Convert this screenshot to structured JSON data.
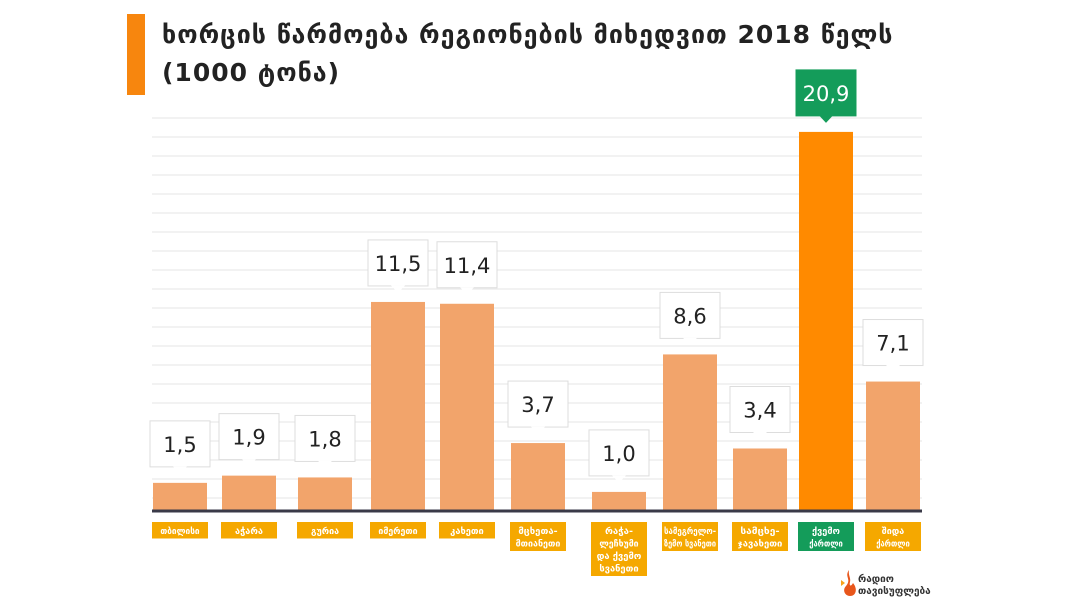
{
  "title": {
    "line1": "ხორცის წარმოება რეგიონების მიხედვით 2018 წელს",
    "line2": "(1000 ტონა)"
  },
  "colors": {
    "accent": "#F7860E",
    "bar": "#F2A46B",
    "highlight_bar": "#FF8A00",
    "highlight_label": "#149C5A",
    "category_label_bg": "#F5A800",
    "axis": "#3a3a48",
    "grid": "#e4e4e4"
  },
  "chart_data": {
    "type": "bar",
    "title": "ხორცის წარმოება რეგიონების მიხედვით 2018 წელს (1000 ტონა)",
    "ylabel": "1000 ტონა",
    "ylim": [
      0,
      22
    ],
    "grid": true,
    "categories": [
      [
        "თბილისი"
      ],
      [
        "აჭარა"
      ],
      [
        "გურია"
      ],
      [
        "იმერეთი"
      ],
      [
        "კახეთი"
      ],
      [
        "მცხეთა-",
        "მთიანეთი"
      ],
      [
        "რაჭა-",
        "ლეჩხუმი",
        "და ქვემო",
        "სვანეთი"
      ],
      [
        "სამეგრელო-",
        "ზემო სვანეთი"
      ],
      [
        "სამცხე-",
        "ჯავახეთი"
      ],
      [
        "ქვემო",
        "ქართლი"
      ],
      [
        "შიდა",
        "ქართლი"
      ]
    ],
    "values": [
      1.5,
      1.9,
      1.8,
      11.5,
      11.4,
      3.7,
      1.0,
      8.6,
      3.4,
      20.9,
      7.1
    ],
    "value_labels": [
      "1,5",
      "1,9",
      "1,8",
      "11,5",
      "11,4",
      "3,7",
      "1,0",
      "8,6",
      "3,4",
      "20,9",
      "7,1"
    ],
    "highlight_index": 9
  },
  "logo": {
    "line1": "რადიო",
    "line2": "თავისუფლება",
    "icon": "flame-icon"
  }
}
